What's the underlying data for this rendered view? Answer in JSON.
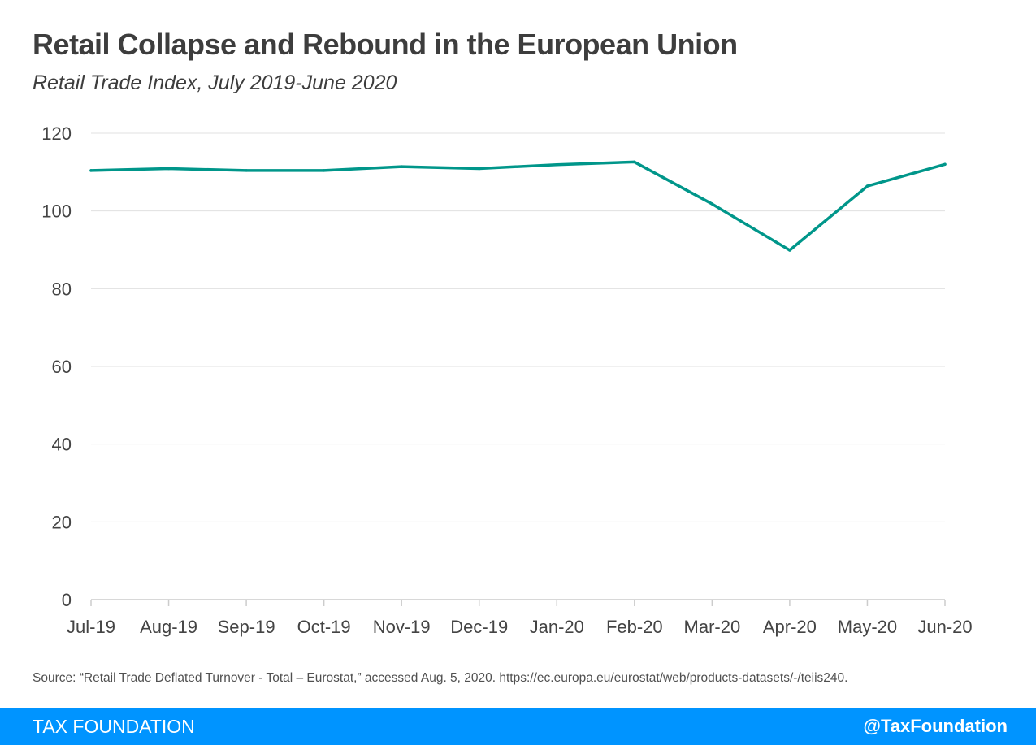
{
  "header": {
    "title": "Retail Collapse and Rebound in the European Union",
    "subtitle": "Retail Trade Index, July 2019-June 2020"
  },
  "chart_data": {
    "type": "line",
    "title": "Retail Collapse and Rebound in the European Union",
    "subtitle": "Retail Trade Index, July 2019-June 2020",
    "xlabel": "",
    "ylabel": "",
    "categories": [
      "Jul-19",
      "Aug-19",
      "Sep-19",
      "Oct-19",
      "Nov-19",
      "Dec-19",
      "Jan-20",
      "Feb-20",
      "Mar-20",
      "Apr-20",
      "May-20",
      "Jun-20"
    ],
    "series": [
      {
        "name": "Retail Trade Index",
        "values": [
          110.4,
          110.9,
          110.4,
          110.4,
          111.4,
          110.9,
          111.9,
          112.6,
          101.8,
          89.9,
          106.4,
          112.0
        ]
      }
    ],
    "ylim": [
      0,
      120
    ],
    "yticks": [
      0,
      20,
      40,
      60,
      80,
      100,
      120
    ],
    "grid": true,
    "legend": "none"
  },
  "colors": {
    "line": "#00968a",
    "grid": "#e0e0e0",
    "footer": "#0094ff"
  },
  "source": "Source: “Retail Trade Deflated Turnover - Total – Eurostat,” accessed Aug. 5, 2020. https://ec.europa.eu/eurostat/web/products-datasets/-/teiis240.",
  "footer": {
    "left": "TAX FOUNDATION",
    "right": "@TaxFoundation"
  }
}
